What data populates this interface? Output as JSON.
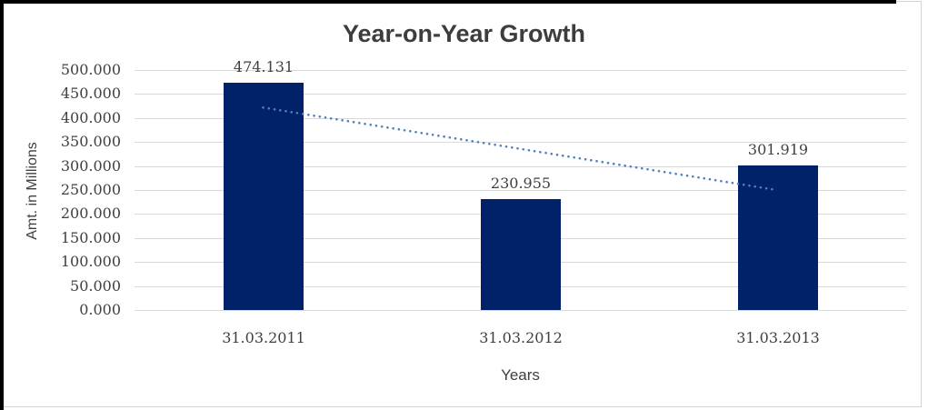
{
  "frame": {
    "outer_edge_color": "#000000",
    "chart_border_color": "#d3d3d3",
    "background": "#ffffff"
  },
  "chart_data": {
    "type": "bar",
    "title": "Year-on-Year Growth",
    "xlabel": "Years",
    "ylabel": "Amt. in Millions",
    "categories": [
      "31.03.2011",
      "31.03.2012",
      "31.03.2013"
    ],
    "values": [
      474.131,
      230.955,
      301.919
    ],
    "data_labels": [
      "474.131",
      "230.955",
      "301.919"
    ],
    "ylim": [
      0,
      500
    ],
    "ytick_step": 50,
    "ytick_labels": [
      "0.000",
      "50.000",
      "100.000",
      "150.000",
      "200.000",
      "250.000",
      "300.000",
      "350.000",
      "400.000",
      "450.000",
      "500.000"
    ],
    "grid": true,
    "legend_position": "none",
    "bar_color": "#012169",
    "gridline_color": "#d9d9d9",
    "text_color": "#404040",
    "title_color": "#3d3d3d",
    "trendline": {
      "type": "linear",
      "style": "dotted",
      "color": "#4f81bd",
      "start_value": 421.8,
      "end_value": 249.6
    }
  }
}
